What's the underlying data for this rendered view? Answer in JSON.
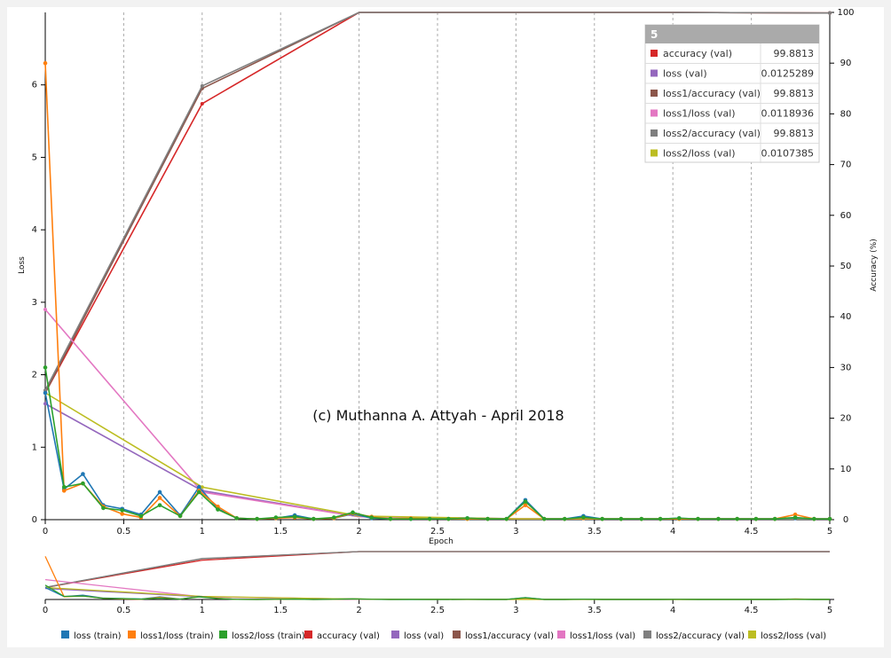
{
  "watermark": "(c) Muthanna A. Attyah - April 2018",
  "colors": {
    "loss_train": "#1f77b4",
    "loss1_train": "#ff7f0e",
    "loss2_train": "#2ca02c",
    "accuracy_val": "#d62728",
    "loss_val": "#9467bd",
    "loss1_accuracy_val": "#8c564b",
    "loss1_loss_val": "#e377c2",
    "loss2_accuracy_val": "#7f7f7f",
    "loss2_loss_val": "#bcbd22"
  },
  "tooltip": {
    "header": "5",
    "rows": [
      {
        "label": "accuracy (val)",
        "value": "99.8813",
        "color": "#d62728"
      },
      {
        "label": "loss (val)",
        "value": "0.0125289",
        "color": "#9467bd"
      },
      {
        "label": "loss1/accuracy (val)",
        "value": "99.8813",
        "color": "#8c564b"
      },
      {
        "label": "loss1/loss (val)",
        "value": "0.0118936",
        "color": "#e377c2"
      },
      {
        "label": "loss2/accuracy (val)",
        "value": "99.8813",
        "color": "#7f7f7f"
      },
      {
        "label": "loss2/loss (val)",
        "value": "0.0107385",
        "color": "#bcbd22"
      }
    ]
  },
  "chart_data": {
    "type": "line",
    "xlabel": "Epoch",
    "ylabel": "Loss",
    "y2label": "Accuracy (%)",
    "xlim": [
      0,
      5
    ],
    "ylim": [
      0,
      7
    ],
    "y2lim": [
      0,
      100
    ],
    "x_ticks": [
      "0",
      "0.5",
      "1",
      "1.5",
      "2",
      "2.5",
      "3",
      "3.5",
      "4",
      "4.5",
      "5"
    ],
    "y_ticks": [
      "0",
      "1",
      "2",
      "3",
      "4",
      "5",
      "6"
    ],
    "y2_ticks": [
      "0",
      "10",
      "20",
      "30",
      "40",
      "50",
      "60",
      "70",
      "80",
      "90",
      "100"
    ],
    "legend_position": "bottom",
    "series": [
      {
        "name": "loss (train)",
        "axis": "left",
        "markers": true,
        "color": "#1f77b4",
        "x": [
          0,
          0.12,
          0.24,
          0.37,
          0.49,
          0.61,
          0.73,
          0.86,
          0.98,
          1.1,
          1.22,
          1.35,
          1.47,
          1.59,
          1.71,
          1.84,
          1.96,
          2.08,
          2.2,
          2.33,
          2.45,
          2.57,
          2.69,
          2.82,
          2.94,
          3.06,
          3.18,
          3.31,
          3.43,
          3.55,
          3.67,
          3.8,
          3.92,
          4.04,
          4.16,
          4.29,
          4.41,
          4.53,
          4.65,
          4.78,
          4.9,
          5.0
        ],
        "y": [
          1.75,
          0.42,
          0.63,
          0.2,
          0.15,
          0.07,
          0.38,
          0.06,
          0.45,
          0.15,
          0.02,
          0.01,
          0.02,
          0.06,
          0.01,
          0.02,
          0.08,
          0.02,
          0.01,
          0.01,
          0.01,
          0.01,
          0.02,
          0.01,
          0.01,
          0.27,
          0.01,
          0.01,
          0.05,
          0.01,
          0.01,
          0.01,
          0.01,
          0.02,
          0.01,
          0.01,
          0.01,
          0.01,
          0.01,
          0.02,
          0.01,
          0.01
        ]
      },
      {
        "name": "loss1/loss (train)",
        "axis": "left",
        "markers": true,
        "color": "#ff7f0e",
        "x": [
          0,
          0.12,
          0.24,
          0.37,
          0.49,
          0.61,
          0.73,
          0.86,
          0.98,
          1.1,
          1.22,
          1.35,
          1.47,
          1.59,
          1.71,
          1.84,
          1.96,
          2.08,
          2.2,
          2.33,
          2.45,
          2.57,
          2.69,
          2.82,
          2.94,
          3.06,
          3.18,
          3.31,
          3.43,
          3.55,
          3.67,
          3.8,
          3.92,
          4.04,
          4.16,
          4.29,
          4.41,
          4.53,
          4.65,
          4.78,
          4.9,
          5.0
        ],
        "y": [
          6.3,
          0.4,
          0.5,
          0.18,
          0.08,
          0.03,
          0.3,
          0.05,
          0.4,
          0.18,
          0.02,
          0.01,
          0.02,
          0.03,
          0.01,
          0.02,
          0.09,
          0.04,
          0.01,
          0.02,
          0.01,
          0.01,
          0.01,
          0.01,
          0.01,
          0.2,
          0.01,
          0.01,
          0.02,
          0.01,
          0.01,
          0.01,
          0.01,
          0.01,
          0.01,
          0.01,
          0.01,
          0.01,
          0.01,
          0.07,
          0.01,
          0.01
        ]
      },
      {
        "name": "loss2/loss (train)",
        "axis": "left",
        "markers": true,
        "color": "#2ca02c",
        "x": [
          0,
          0.12,
          0.24,
          0.37,
          0.49,
          0.61,
          0.73,
          0.86,
          0.98,
          1.1,
          1.22,
          1.35,
          1.47,
          1.59,
          1.71,
          1.84,
          1.96,
          2.08,
          2.2,
          2.33,
          2.45,
          2.57,
          2.69,
          2.82,
          2.94,
          3.06,
          3.18,
          3.31,
          3.43,
          3.55,
          3.67,
          3.8,
          3.92,
          4.04,
          4.16,
          4.29,
          4.41,
          4.53,
          4.65,
          4.78,
          4.9,
          5.0
        ],
        "y": [
          2.1,
          0.45,
          0.5,
          0.16,
          0.13,
          0.05,
          0.2,
          0.05,
          0.38,
          0.14,
          0.02,
          0.01,
          0.03,
          0.04,
          0.01,
          0.03,
          0.1,
          0.03,
          0.01,
          0.01,
          0.01,
          0.01,
          0.02,
          0.01,
          0.01,
          0.25,
          0.01,
          0.01,
          0.03,
          0.01,
          0.01,
          0.01,
          0.01,
          0.02,
          0.01,
          0.01,
          0.01,
          0.01,
          0.01,
          0.03,
          0.01,
          0.01
        ]
      },
      {
        "name": "accuracy (val)",
        "axis": "right",
        "markers": false,
        "color": "#d62728",
        "x": [
          0,
          1,
          2,
          3,
          4,
          5
        ],
        "y": [
          25,
          82,
          100,
          100,
          100,
          99.88
        ]
      },
      {
        "name": "loss (val)",
        "axis": "left",
        "markers": false,
        "color": "#9467bd",
        "x": [
          0,
          1,
          2,
          3,
          4,
          5
        ],
        "y": [
          1.6,
          0.4,
          0.04,
          0.013,
          0.013,
          0.0125
        ]
      },
      {
        "name": "loss1/accuracy (val)",
        "axis": "right",
        "markers": false,
        "color": "#8c564b",
        "x": [
          0,
          1,
          2,
          3,
          4,
          5
        ],
        "y": [
          25,
          85,
          100,
          100,
          100,
          99.88
        ]
      },
      {
        "name": "loss1/loss (val)",
        "axis": "left",
        "markers": false,
        "color": "#e377c2",
        "x": [
          0,
          1,
          2,
          3,
          4,
          5
        ],
        "y": [
          2.9,
          0.38,
          0.04,
          0.012,
          0.012,
          0.0119
        ]
      },
      {
        "name": "loss2/accuracy (val)",
        "axis": "right",
        "markers": false,
        "color": "#7f7f7f",
        "x": [
          0,
          1,
          2,
          3,
          4,
          5
        ],
        "y": [
          25.5,
          85.5,
          100,
          100,
          100,
          99.88
        ]
      },
      {
        "name": "loss2/loss (val)",
        "axis": "left",
        "markers": false,
        "color": "#bcbd22",
        "x": [
          0,
          1,
          2,
          3,
          4,
          5
        ],
        "y": [
          1.75,
          0.45,
          0.05,
          0.011,
          0.011,
          0.0107
        ]
      }
    ]
  }
}
